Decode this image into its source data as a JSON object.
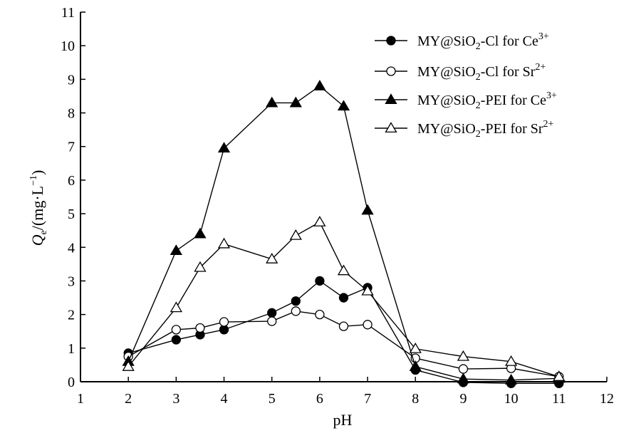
{
  "chart_data": {
    "type": "line",
    "xlabel": "pH",
    "ylabel_main": "Q",
    "ylabel_sub": "e",
    "ylabel_unit": "/(mg·L",
    "ylabel_exp": "−1",
    "ylabel_close": ")",
    "xlim": [
      1,
      12
    ],
    "ylim": [
      0,
      11
    ],
    "xticks": [
      1,
      2,
      3,
      4,
      5,
      6,
      7,
      8,
      9,
      10,
      11,
      12
    ],
    "yticks": [
      0,
      1,
      2,
      3,
      4,
      5,
      6,
      7,
      8,
      9,
      10,
      11
    ],
    "grid": false,
    "legend_position": "top-right",
    "series": [
      {
        "name_base": "MY@SiO",
        "name_sub": "2",
        "name_mid": "-Cl for Ce",
        "name_sup": "3+",
        "marker": "circle",
        "filled": true,
        "x": [
          2,
          3,
          3.5,
          4,
          5,
          5.5,
          6,
          6.5,
          7,
          8,
          9,
          10,
          11
        ],
        "y": [
          0.85,
          1.25,
          1.4,
          1.55,
          2.05,
          2.4,
          3.0,
          2.5,
          2.8,
          0.35,
          -0.02,
          -0.05,
          -0.05
        ]
      },
      {
        "name_base": "MY@SiO",
        "name_sub": "2",
        "name_mid": "-Cl for Sr",
        "name_sup": "2+",
        "marker": "circle",
        "filled": false,
        "x": [
          2,
          3,
          3.5,
          4,
          5,
          5.5,
          6,
          6.5,
          7,
          8,
          9,
          10,
          11
        ],
        "y": [
          0.75,
          1.55,
          1.6,
          1.78,
          1.8,
          2.1,
          2.0,
          1.65,
          1.7,
          0.7,
          0.38,
          0.4,
          0.15
        ]
      },
      {
        "name_base": "MY@SiO",
        "name_sub": "2",
        "name_mid": "-PEI for Ce",
        "name_sup": "3+",
        "marker": "triangle",
        "filled": true,
        "x": [
          2,
          3,
          3.5,
          4,
          5,
          5.5,
          6,
          6.5,
          7,
          8,
          9,
          10,
          11
        ],
        "y": [
          0.6,
          3.9,
          4.4,
          6.95,
          8.3,
          8.3,
          8.8,
          8.2,
          5.1,
          0.45,
          0.08,
          0.05,
          0.1
        ]
      },
      {
        "name_base": "MY@SiO",
        "name_sub": "2",
        "name_mid": "-PEI for Sr",
        "name_sup": "2+",
        "marker": "triangle",
        "filled": false,
        "x": [
          2,
          3,
          3.5,
          4,
          5,
          5.5,
          6,
          6.5,
          7,
          8,
          9,
          10,
          11
        ],
        "y": [
          0.45,
          2.2,
          3.4,
          4.1,
          3.65,
          4.35,
          4.75,
          3.3,
          2.7,
          0.98,
          0.75,
          0.6,
          0.15
        ]
      }
    ]
  }
}
